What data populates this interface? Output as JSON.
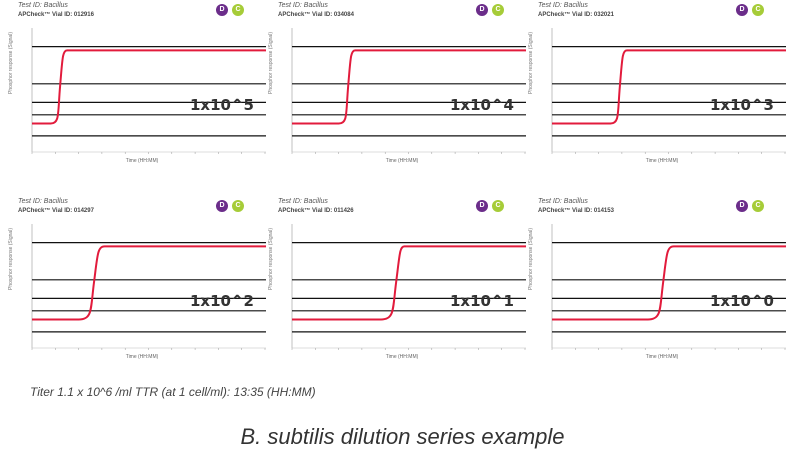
{
  "colors": {
    "curve": "#e21b3c",
    "gridline": "#111111",
    "badge_d": "#6b2d8a",
    "badge_c": "#a6cc38"
  },
  "panels": [
    {
      "test_id": "Test ID: Bacillus",
      "vial_id": "APCheck™ Vial ID: 012916",
      "dilution": "1x10^5",
      "ylabel": "Phosphor response (Signal)",
      "xlabel": "Time (HH:MM)"
    },
    {
      "test_id": "Test ID: Bacillus",
      "vial_id": "APCheck™ Vial ID: 034084",
      "dilution": "1x10^4",
      "ylabel": "Phosphor response (Signal)",
      "xlabel": "Time (HH:MM)"
    },
    {
      "test_id": "Test ID: Bacillus",
      "vial_id": "APCheck™ Vial ID: 032021",
      "dilution": "1x10^3",
      "ylabel": "Phosphor response (Signal)",
      "xlabel": "Time (HH:MM)"
    },
    {
      "test_id": "Test ID: Bacillus",
      "vial_id": "APCheck™ Vial ID: 014297",
      "dilution": "1x10^2",
      "ylabel": "Phosphor response (Signal)",
      "xlabel": "Time (HH:MM)"
    },
    {
      "test_id": "Test ID: Bacillus",
      "vial_id": "APCheck™ Vial ID: 011426",
      "dilution": "1x10^1",
      "ylabel": "Phosphor response (Signal)",
      "xlabel": "Time (HH:MM)"
    },
    {
      "test_id": "Test ID: Bacillus",
      "vial_id": "APCheck™ Vial ID: 014153",
      "dilution": "1x10^0",
      "ylabel": "Phosphor response (Signal)",
      "xlabel": "Time (HH:MM)"
    }
  ],
  "badges": {
    "d": "D",
    "c": "C"
  },
  "chart_data": [
    {
      "type": "line",
      "title": "1x10^5",
      "xlabel": "Time (HH:MM)",
      "ylabel": "Phosphor response (Signal)",
      "xlim": [
        0,
        1
      ],
      "ylim": [
        0,
        1
      ],
      "grid": true,
      "series": [
        {
          "x": [
            0.0,
            0.08,
            0.11,
            0.13,
            0.15,
            1.0
          ],
          "y": [
            0.23,
            0.23,
            0.31,
            0.75,
            0.82,
            0.82
          ]
        }
      ]
    },
    {
      "type": "line",
      "title": "1x10^4",
      "xlabel": "Time (HH:MM)",
      "ylabel": "Phosphor response (Signal)",
      "xlim": [
        0,
        1
      ],
      "ylim": [
        0,
        1
      ],
      "grid": true,
      "series": [
        {
          "x": [
            0.0,
            0.2,
            0.23,
            0.25,
            0.27,
            1.0
          ],
          "y": [
            0.23,
            0.23,
            0.31,
            0.75,
            0.82,
            0.82
          ]
        }
      ]
    },
    {
      "type": "line",
      "title": "1x10^3",
      "xlabel": "Time (HH:MM)",
      "ylabel": "Phosphor response (Signal)",
      "xlim": [
        0,
        1
      ],
      "ylim": [
        0,
        1
      ],
      "grid": true,
      "series": [
        {
          "x": [
            0.0,
            0.25,
            0.28,
            0.3,
            0.32,
            1.0
          ],
          "y": [
            0.23,
            0.23,
            0.31,
            0.75,
            0.82,
            0.82
          ]
        }
      ]
    },
    {
      "type": "line",
      "title": "1x10^2",
      "xlabel": "Time (HH:MM)",
      "ylabel": "Phosphor response (Signal)",
      "xlim": [
        0,
        1
      ],
      "ylim": [
        0,
        1
      ],
      "grid": true,
      "series": [
        {
          "x": [
            0.0,
            0.2,
            0.25,
            0.28,
            0.31,
            1.0
          ],
          "y": [
            0.23,
            0.23,
            0.31,
            0.75,
            0.82,
            0.82
          ]
        }
      ]
    },
    {
      "type": "line",
      "title": "1x10^1",
      "xlabel": "Time (HH:MM)",
      "ylabel": "Phosphor response (Signal)",
      "xlim": [
        0,
        1
      ],
      "ylim": [
        0,
        1
      ],
      "grid": true,
      "series": [
        {
          "x": [
            0.0,
            0.38,
            0.43,
            0.46,
            0.48,
            1.0
          ],
          "y": [
            0.23,
            0.23,
            0.31,
            0.75,
            0.82,
            0.82
          ]
        }
      ]
    },
    {
      "type": "line",
      "title": "1x10^0",
      "xlabel": "Time (HH:MM)",
      "ylabel": "Phosphor response (Signal)",
      "xlim": [
        0,
        1
      ],
      "ylim": [
        0,
        1
      ],
      "grid": true,
      "series": [
        {
          "x": [
            0.0,
            0.41,
            0.46,
            0.49,
            0.52,
            1.0
          ],
          "y": [
            0.23,
            0.23,
            0.31,
            0.75,
            0.82,
            0.82
          ]
        }
      ]
    }
  ],
  "titer_text": "Titer 1.1 x 10^6 /ml TTR (at 1 cell/ml): 13:35 (HH:MM)",
  "caption": "B. subtilis dilution series example"
}
